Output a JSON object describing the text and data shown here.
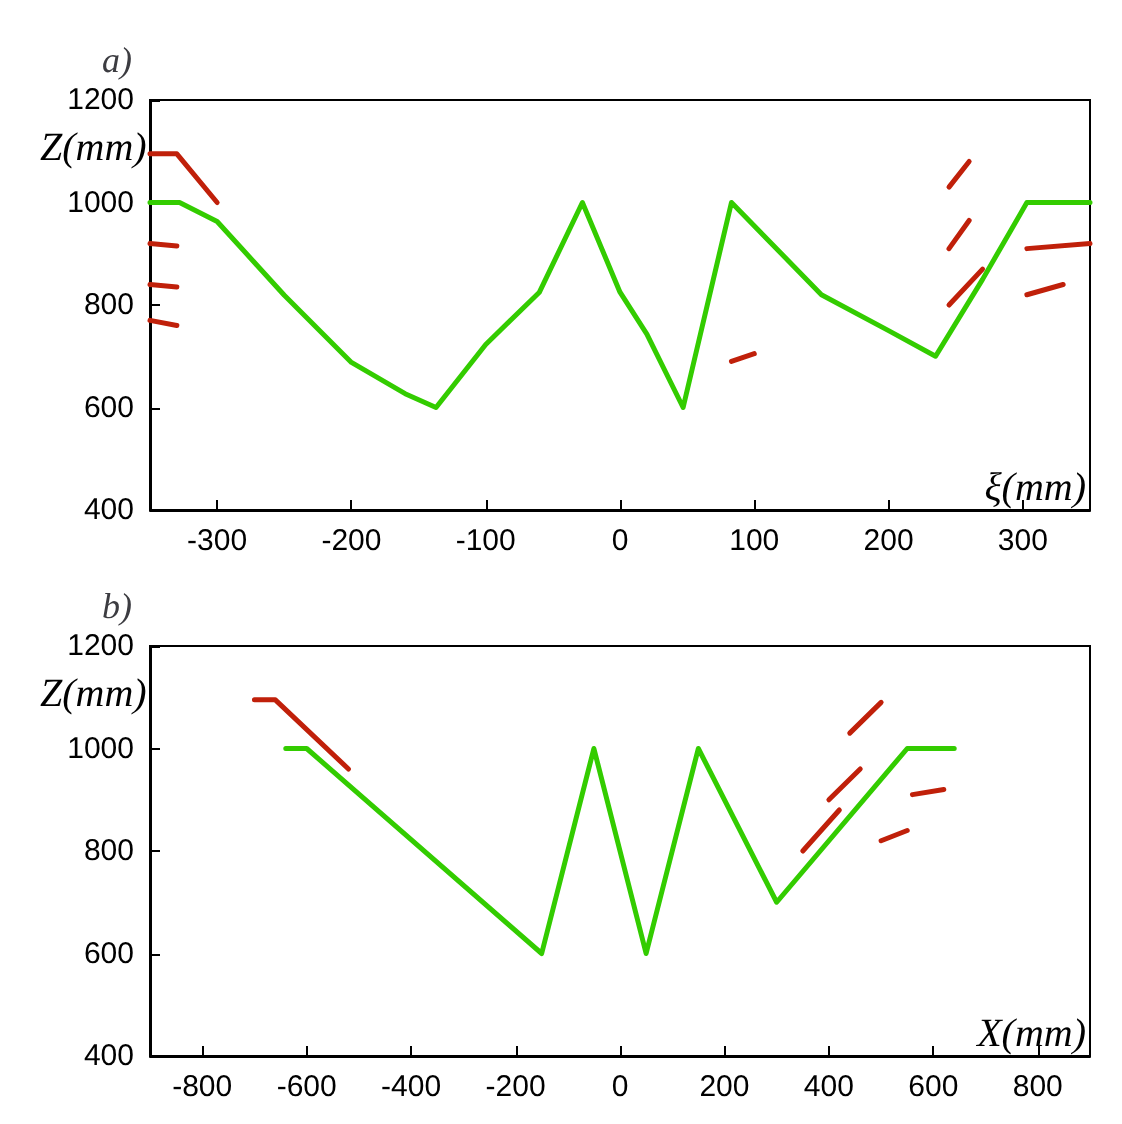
{
  "chart_data": [
    {
      "type": "line",
      "title": "a)",
      "xlabel": "ξ(mm)",
      "ylabel": "Z(mm)",
      "xlim": [
        -350,
        350
      ],
      "ylim": [
        400,
        1200
      ],
      "xticks": [
        -300,
        -200,
        -100,
        0,
        100,
        200,
        300
      ],
      "yticks": [
        400,
        600,
        800,
        1000,
        1200
      ],
      "marker": "none",
      "line_style": "solid",
      "series": [
        {
          "color": "#c0200a",
          "x": [
            -350,
            -330,
            -300
          ],
          "values": [
            1095,
            1095,
            1000
          ]
        },
        {
          "color": "#c0200a",
          "x": [
            -350,
            -330
          ],
          "values": [
            920,
            915
          ]
        },
        {
          "color": "#c0200a",
          "x": [
            -350,
            -330
          ],
          "values": [
            840,
            835
          ]
        },
        {
          "color": "#c0200a",
          "x": [
            -350,
            -330
          ],
          "values": [
            770,
            760
          ]
        },
        {
          "color": "#c0200a",
          "x": [
            245,
            260
          ],
          "values": [
            1030,
            1080
          ]
        },
        {
          "color": "#c0200a",
          "x": [
            245,
            260
          ],
          "values": [
            910,
            965
          ]
        },
        {
          "color": "#c0200a",
          "x": [
            245,
            270
          ],
          "values": [
            800,
            870
          ]
        },
        {
          "color": "#c0200a",
          "x": [
            303,
            350
          ],
          "values": [
            910,
            920
          ]
        },
        {
          "color": "#c0200a",
          "x": [
            303,
            330
          ],
          "values": [
            820,
            840
          ]
        },
        {
          "color": "#c0200a",
          "x": [
            83,
            100
          ],
          "values": [
            690,
            705
          ]
        },
        {
          "color": "#33cc00",
          "x": [
            -350,
            -328,
            -300,
            -250,
            -200,
            -160,
            -137,
            -100,
            -60,
            -28,
            0,
            20,
            47,
            83,
            150,
            200,
            235,
            270,
            303,
            350
          ],
          "values": [
            1000,
            1000,
            963,
            819,
            688,
            627,
            600,
            723,
            825,
            1000,
            825,
            743,
            600,
            1000,
            820,
            750,
            700,
            850,
            1000,
            1000
          ]
        }
      ]
    },
    {
      "type": "line",
      "title": "b)",
      "xlabel": "X(mm)",
      "ylabel": "Z(mm)",
      "xlim": [
        -900,
        900
      ],
      "ylim": [
        400,
        1200
      ],
      "xticks": [
        -800,
        -600,
        -400,
        -200,
        0,
        200,
        400,
        600,
        800
      ],
      "yticks": [
        400,
        600,
        800,
        1000,
        1200
      ],
      "marker": "none",
      "line_style": "solid",
      "series": [
        {
          "color": "#c0200a",
          "x": [
            -700,
            -660,
            -520
          ],
          "values": [
            1095,
            1095,
            960
          ]
        },
        {
          "color": "#c0200a",
          "x": [
            440,
            500
          ],
          "values": [
            1030,
            1090
          ]
        },
        {
          "color": "#c0200a",
          "x": [
            400,
            460
          ],
          "values": [
            900,
            960
          ]
        },
        {
          "color": "#c0200a",
          "x": [
            350,
            420
          ],
          "values": [
            800,
            880
          ]
        },
        {
          "color": "#c0200a",
          "x": [
            560,
            620
          ],
          "values": [
            910,
            920
          ]
        },
        {
          "color": "#c0200a",
          "x": [
            500,
            550
          ],
          "values": [
            820,
            840
          ]
        },
        {
          "color": "#33cc00",
          "x": [
            -640,
            -600,
            -150,
            -50,
            50,
            150,
            300,
            550,
            640
          ],
          "values": [
            1000,
            1000,
            600,
            1000,
            600,
            1000,
            700,
            1000,
            1000
          ]
        }
      ]
    }
  ]
}
